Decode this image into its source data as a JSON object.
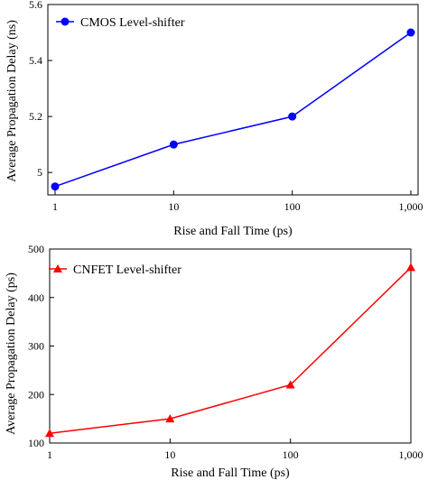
{
  "chart_data": [
    {
      "type": "line",
      "x_scale": "log",
      "x": [
        1,
        10,
        100,
        1000
      ],
      "x_tick_labels": [
        "1",
        "10",
        "100",
        "1,000"
      ],
      "xlim": [
        1,
        1000
      ],
      "y_ticks": [
        5,
        5.2,
        5.4,
        5.6
      ],
      "y_tick_labels": [
        "5",
        "5.2",
        "5.4",
        "5.6"
      ],
      "ylim": [
        4.92,
        5.6
      ],
      "xlabel": "Rise and Fall Time (ps)",
      "ylabel": "Average Propagation Delay (ns)",
      "legend_position": "top-left",
      "grid": false,
      "series": [
        {
          "name": "CMOS Level-shifter",
          "values": [
            4.95,
            5.1,
            5.2,
            5.5
          ],
          "color": "#0000ff",
          "marker": "circle"
        }
      ]
    },
    {
      "type": "line",
      "x_scale": "log",
      "x": [
        1,
        10,
        100,
        1000
      ],
      "x_tick_labels": [
        "1",
        "10",
        "100",
        "1,000"
      ],
      "xlim": [
        1,
        1000
      ],
      "y_ticks": [
        100,
        200,
        300,
        400,
        500
      ],
      "y_tick_labels": [
        "100",
        "200",
        "300",
        "400",
        "500"
      ],
      "ylim": [
        100,
        500
      ],
      "xlabel": "Rise and Fall Time (ps)",
      "ylabel": "Average Propagation Delay (ps)",
      "legend_position": "top-left",
      "grid": false,
      "series": [
        {
          "name": "CNFET Level-shifter",
          "values": [
            120,
            150,
            220,
            462
          ],
          "color": "#ff0000",
          "marker": "triangle"
        }
      ]
    }
  ]
}
